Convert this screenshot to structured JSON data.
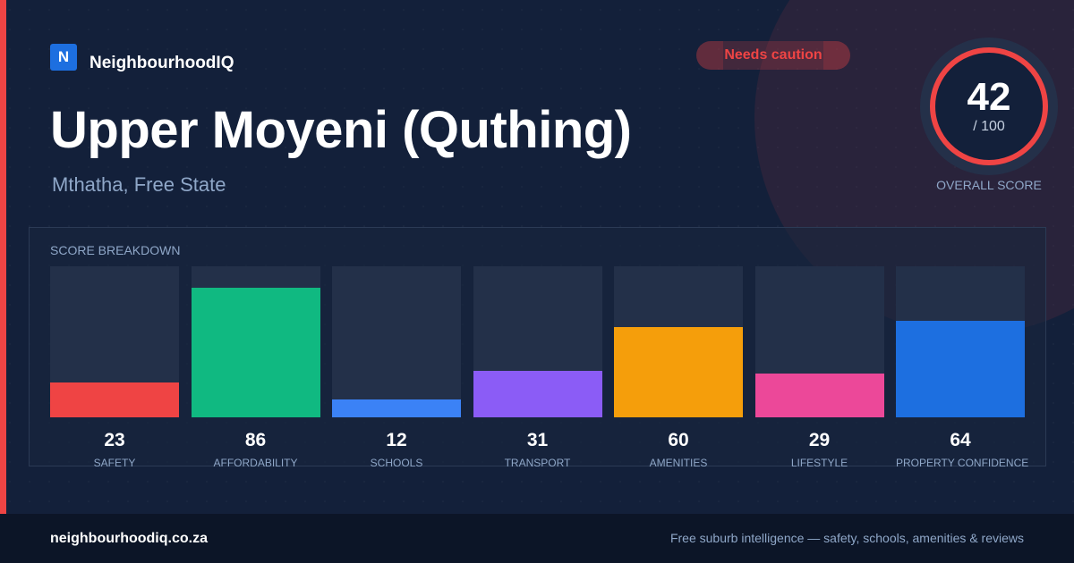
{
  "brand": {
    "logo_letter": "N",
    "name": "NeighbourhoodIQ"
  },
  "badge": {
    "label": "Needs caution",
    "color": "#ef4444"
  },
  "header": {
    "title": "Upper Moyeni (Quthing)",
    "subtitle": "Mthatha, Free State"
  },
  "score": {
    "value": "42",
    "max_label": "/ 100",
    "label": "OVERALL SCORE",
    "ring_color": "#ef4444"
  },
  "breakdown": {
    "title": "SCORE BREAKDOWN",
    "max": 100,
    "items": [
      {
        "label": "SAFETY",
        "value": 23,
        "color": "#ef4444"
      },
      {
        "label": "AFFORDABILITY",
        "value": 86,
        "color": "#10b981"
      },
      {
        "label": "SCHOOLS",
        "value": 12,
        "color": "#3b82f6"
      },
      {
        "label": "TRANSPORT",
        "value": 31,
        "color": "#8b5cf6"
      },
      {
        "label": "AMENITIES",
        "value": 60,
        "color": "#f59e0b"
      },
      {
        "label": "LIFESTYLE",
        "value": 29,
        "color": "#ec4899"
      },
      {
        "label": "PROPERTY CONFIDENCE",
        "value": 64,
        "color": "#1d6fe0"
      }
    ]
  },
  "footer": {
    "site": "neighbourhoodiq.co.za",
    "tagline": "Free suburb intelligence — safety, schools, amenities & reviews"
  }
}
